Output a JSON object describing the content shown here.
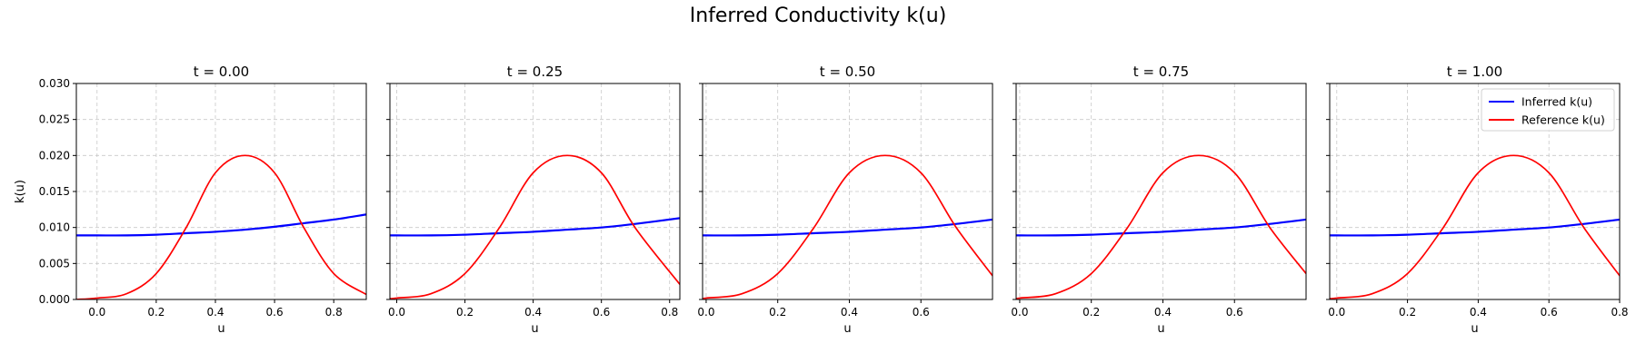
{
  "figure": {
    "title": "Inferred Conductivity k(u)"
  },
  "colors": {
    "inferred": "#0000ff",
    "reference": "#ff0000",
    "grid": "#c8c8c8",
    "axes": "#000000"
  },
  "chart_data": [
    {
      "type": "line",
      "title": "t = 0.00",
      "xlabel": "u",
      "ylabel": "k(u)",
      "xlim": [
        -0.07,
        0.91
      ],
      "ylim": [
        0,
        0.03
      ],
      "xticks": [
        0.0,
        0.2,
        0.4,
        0.6,
        0.8
      ],
      "xtick_labels": [
        "0.0",
        "0.2",
        "0.4",
        "0.6",
        "0.8"
      ],
      "yticks": [
        0.0,
        0.005,
        0.01,
        0.015,
        0.02,
        0.025,
        0.03
      ],
      "ytick_labels": [
        "0.000",
        "0.005",
        "0.010",
        "0.015",
        "0.020",
        "0.025",
        "0.030"
      ],
      "grid": true,
      "legend": null,
      "series": [
        {
          "name": "Inferred k(u)",
          "color": "#0000ff",
          "x": [
            -0.07,
            0.0,
            0.1,
            0.2,
            0.3,
            0.4,
            0.5,
            0.6,
            0.7,
            0.8,
            0.91
          ],
          "y": [
            0.0089,
            0.0089,
            0.0089,
            0.009,
            0.0092,
            0.0094,
            0.0097,
            0.0101,
            0.0106,
            0.0111,
            0.0118
          ]
        },
        {
          "name": "Reference k(u)",
          "color": "#ff0000",
          "x": [
            -0.07,
            0.0,
            0.1,
            0.2,
            0.3,
            0.4,
            0.5,
            0.6,
            0.7,
            0.8,
            0.91
          ],
          "y": [
            0.0,
            0.0002,
            0.0008,
            0.0036,
            0.0099,
            0.0176,
            0.02,
            0.0176,
            0.0099,
            0.0036,
            0.0007
          ]
        }
      ]
    },
    {
      "type": "line",
      "title": "t = 0.25",
      "xlabel": "u",
      "ylabel": "",
      "xlim": [
        -0.02,
        0.83
      ],
      "ylim": [
        0,
        0.03
      ],
      "xticks": [
        0.0,
        0.2,
        0.4,
        0.6,
        0.8
      ],
      "xtick_labels": [
        "0.0",
        "0.2",
        "0.4",
        "0.6",
        "0.8"
      ],
      "yticks": [
        0.0,
        0.005,
        0.01,
        0.015,
        0.02,
        0.025,
        0.03
      ],
      "ytick_labels": [],
      "grid": true,
      "legend": null,
      "series": [
        {
          "name": "Inferred k(u)",
          "color": "#0000ff",
          "x": [
            -0.02,
            0.0,
            0.1,
            0.2,
            0.3,
            0.4,
            0.5,
            0.6,
            0.7,
            0.83
          ],
          "y": [
            0.0089,
            0.0089,
            0.0089,
            0.009,
            0.0092,
            0.0094,
            0.0097,
            0.01,
            0.0105,
            0.0113
          ]
        },
        {
          "name": "Reference k(u)",
          "color": "#ff0000",
          "x": [
            -0.02,
            0.0,
            0.1,
            0.2,
            0.3,
            0.4,
            0.5,
            0.6,
            0.7,
            0.83
          ],
          "y": [
            0.0001,
            0.0002,
            0.0008,
            0.0036,
            0.0099,
            0.0176,
            0.02,
            0.0176,
            0.0099,
            0.0021
          ]
        }
      ]
    },
    {
      "type": "line",
      "title": "t = 0.50",
      "xlabel": "u",
      "ylabel": "",
      "xlim": [
        -0.01,
        0.8
      ],
      "ylim": [
        0,
        0.03
      ],
      "xticks": [
        0.0,
        0.2,
        0.4,
        0.6
      ],
      "xtick_labels": [
        "0.0",
        "0.2",
        "0.4",
        "0.6"
      ],
      "yticks": [
        0.0,
        0.005,
        0.01,
        0.015,
        0.02,
        0.025,
        0.03
      ],
      "ytick_labels": [],
      "grid": true,
      "legend": null,
      "series": [
        {
          "name": "Inferred k(u)",
          "color": "#0000ff",
          "x": [
            -0.01,
            0.0,
            0.1,
            0.2,
            0.3,
            0.4,
            0.5,
            0.6,
            0.7,
            0.8
          ],
          "y": [
            0.0089,
            0.0089,
            0.0089,
            0.009,
            0.0092,
            0.0094,
            0.0097,
            0.01,
            0.0105,
            0.0111
          ]
        },
        {
          "name": "Reference k(u)",
          "color": "#ff0000",
          "x": [
            -0.01,
            0.0,
            0.1,
            0.2,
            0.3,
            0.4,
            0.5,
            0.6,
            0.7,
            0.8
          ],
          "y": [
            0.0001,
            0.0002,
            0.0008,
            0.0036,
            0.0099,
            0.0176,
            0.02,
            0.0176,
            0.0099,
            0.0033
          ]
        }
      ]
    },
    {
      "type": "line",
      "title": "t = 0.75",
      "xlabel": "u",
      "ylabel": "",
      "xlim": [
        -0.01,
        0.8
      ],
      "ylim": [
        0,
        0.03
      ],
      "xticks": [
        0.0,
        0.2,
        0.4,
        0.6
      ],
      "xtick_labels": [
        "0.0",
        "0.2",
        "0.4",
        "0.6"
      ],
      "yticks": [
        0.0,
        0.005,
        0.01,
        0.015,
        0.02,
        0.025,
        0.03
      ],
      "ytick_labels": [],
      "grid": true,
      "legend": null,
      "series": [
        {
          "name": "Inferred k(u)",
          "color": "#0000ff",
          "x": [
            -0.01,
            0.0,
            0.1,
            0.2,
            0.3,
            0.4,
            0.5,
            0.6,
            0.7,
            0.8
          ],
          "y": [
            0.0089,
            0.0089,
            0.0089,
            0.009,
            0.0092,
            0.0094,
            0.0097,
            0.01,
            0.0105,
            0.0111
          ]
        },
        {
          "name": "Reference k(u)",
          "color": "#ff0000",
          "x": [
            -0.01,
            0.0,
            0.1,
            0.2,
            0.3,
            0.4,
            0.5,
            0.6,
            0.7,
            0.8
          ],
          "y": [
            0.0001,
            0.0002,
            0.0008,
            0.0036,
            0.0099,
            0.0176,
            0.02,
            0.0176,
            0.0099,
            0.0036
          ]
        }
      ]
    },
    {
      "type": "line",
      "title": "t = 1.00",
      "xlabel": "u",
      "ylabel": "",
      "xlim": [
        -0.02,
        0.8
      ],
      "ylim": [
        0,
        0.03
      ],
      "xticks": [
        0.0,
        0.2,
        0.4,
        0.6,
        0.8
      ],
      "xtick_labels": [
        "0.0",
        "0.2",
        "0.4",
        "0.6",
        "0.8"
      ],
      "yticks": [
        0.0,
        0.005,
        0.01,
        0.015,
        0.02,
        0.025,
        0.03
      ],
      "ytick_labels": [],
      "grid": true,
      "legend": "top-right",
      "series": [
        {
          "name": "Inferred k(u)",
          "color": "#0000ff",
          "x": [
            -0.02,
            0.0,
            0.1,
            0.2,
            0.3,
            0.4,
            0.5,
            0.6,
            0.7,
            0.8
          ],
          "y": [
            0.0089,
            0.0089,
            0.0089,
            0.009,
            0.0092,
            0.0094,
            0.0097,
            0.01,
            0.0105,
            0.0111
          ]
        },
        {
          "name": "Reference k(u)",
          "color": "#ff0000",
          "x": [
            -0.02,
            0.0,
            0.1,
            0.2,
            0.3,
            0.4,
            0.5,
            0.6,
            0.7,
            0.8
          ],
          "y": [
            0.0001,
            0.0002,
            0.0008,
            0.0036,
            0.0099,
            0.0176,
            0.02,
            0.0176,
            0.0099,
            0.0033
          ]
        }
      ]
    }
  ]
}
